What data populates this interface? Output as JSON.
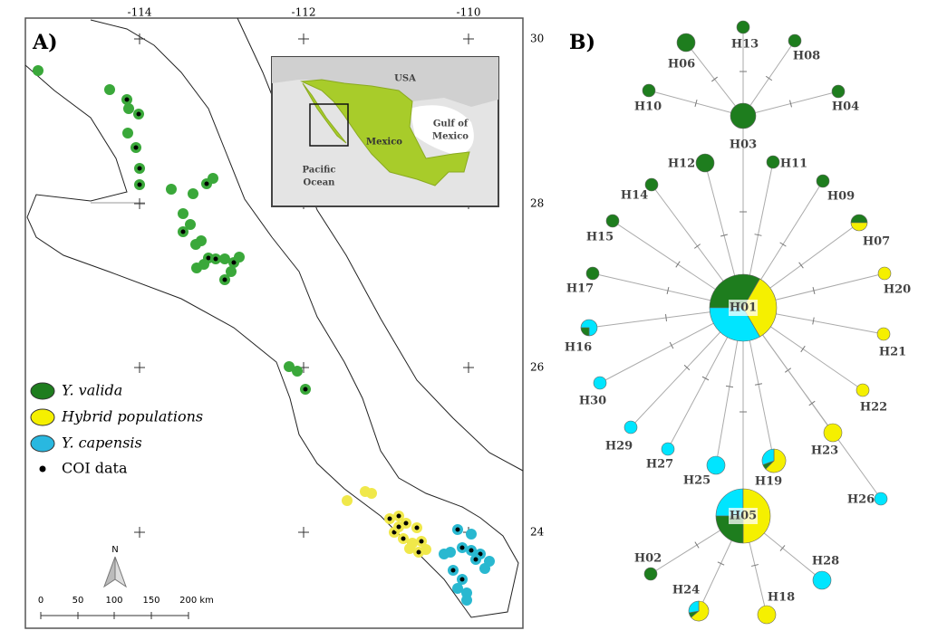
{
  "panel_a": {
    "label": "A)",
    "longitude_labels": [
      "-114",
      "-112",
      "-110"
    ],
    "latitude_labels": [
      "30",
      "28",
      "26",
      "24"
    ],
    "inset": {
      "usa": "USA",
      "mexico": "Mexico",
      "gulf": [
        "Gulf of",
        "Mexico"
      ],
      "pacific": [
        "Pacific",
        "Ocean"
      ]
    },
    "legend": [
      "Y. valida",
      "Hybrid populations",
      "Y. capensis",
      "COI data"
    ],
    "north": "N",
    "scale_labels": [
      "0",
      "50",
      "100",
      "150",
      "200 km"
    ]
  },
  "panel_b": {
    "label": "B)",
    "haplotypes": [
      "H01",
      "H05",
      "H03",
      "H13",
      "H06",
      "H08",
      "H10",
      "H04",
      "H12",
      "H11",
      "H14",
      "H09",
      "H15",
      "H07",
      "H17",
      "H20",
      "H16",
      "H21",
      "H30",
      "H22",
      "H29",
      "H23",
      "H27",
      "H19",
      "H25",
      "H26",
      "H02",
      "H28",
      "H24",
      "H18"
    ]
  }
}
